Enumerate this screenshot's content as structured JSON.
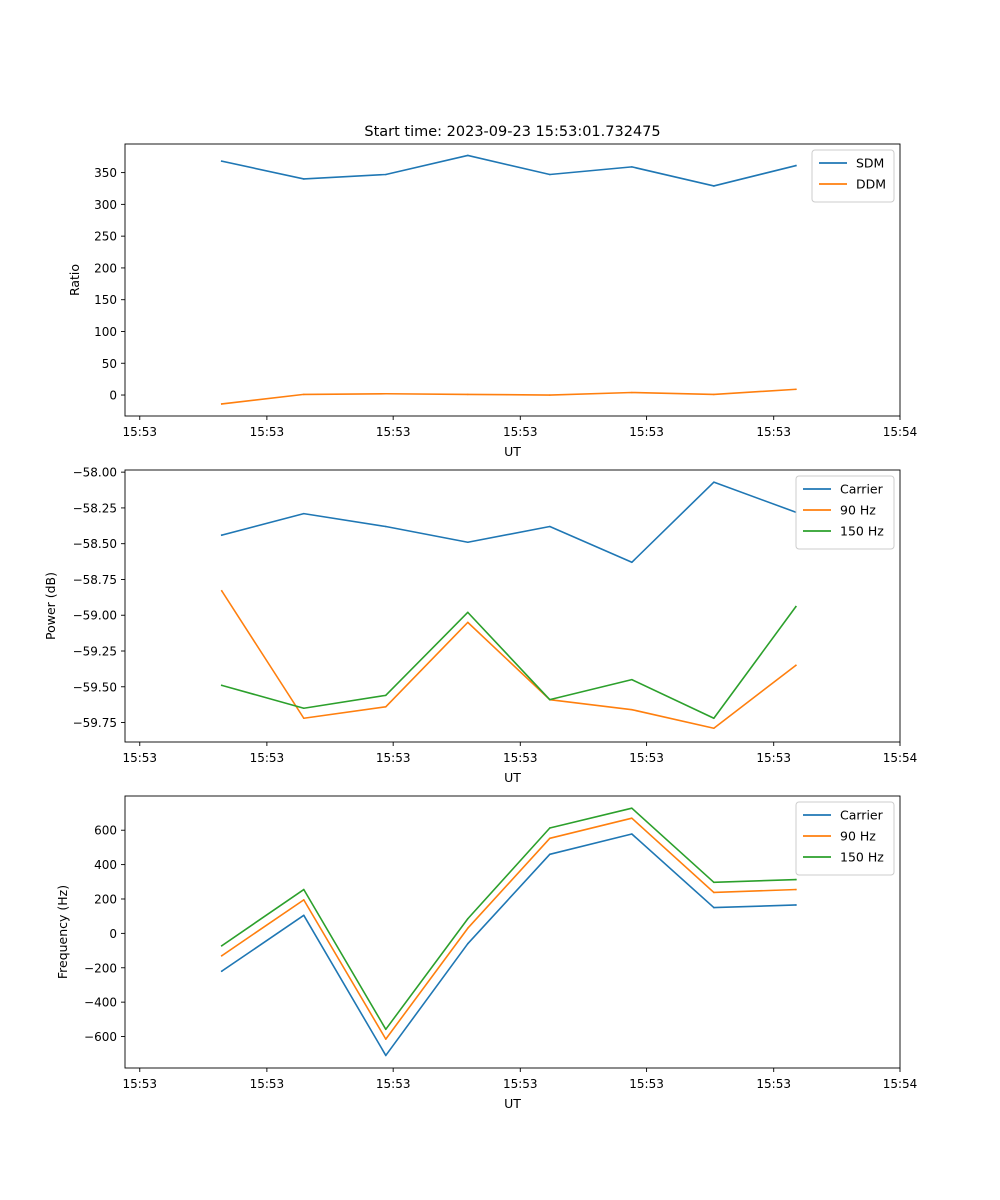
{
  "figure_title": "Start time: 2023-09-23 15:53:01.732475",
  "colors": {
    "blue": "#1f77b4",
    "orange": "#ff7f0e",
    "green": "#2ca02c",
    "axis": "#000000"
  },
  "chart_data": [
    {
      "type": "line",
      "title": "Start time: 2023-09-23 15:53:01.732475",
      "xlabel": "UT",
      "ylabel": "Ratio",
      "x": [
        1,
        2,
        3,
        4,
        5,
        6,
        7,
        8
      ],
      "xlim": [
        -0.18,
        9.27
      ],
      "xticks": [
        0,
        1.55,
        3.09,
        4.64,
        6.18,
        7.73,
        9.27
      ],
      "xtick_labels": [
        "15:53",
        "15:53",
        "15:53",
        "15:53",
        "15:53",
        "15:53",
        "15:54"
      ],
      "ylim": [
        -33,
        395
      ],
      "yticks": [
        0,
        50,
        100,
        150,
        200,
        250,
        300,
        350
      ],
      "ytick_labels": [
        "0",
        "50",
        "100",
        "150",
        "200",
        "250",
        "300",
        "350"
      ],
      "legend": "top-right",
      "series": [
        {
          "name": "SDM",
          "color": "#1f77b4",
          "values": [
            368,
            340,
            347,
            377,
            347,
            359,
            329,
            361
          ]
        },
        {
          "name": "DDM",
          "color": "#ff7f0e",
          "values": [
            -14,
            1,
            2,
            1,
            0,
            4,
            1,
            9
          ]
        }
      ]
    },
    {
      "type": "line",
      "title": "",
      "xlabel": "UT",
      "ylabel": "Power (dB)",
      "x": [
        1,
        2,
        3,
        4,
        5,
        6,
        7,
        8
      ],
      "xlim": [
        -0.18,
        9.27
      ],
      "xticks": [
        0,
        1.55,
        3.09,
        4.64,
        6.18,
        7.73,
        9.27
      ],
      "xtick_labels": [
        "15:53",
        "15:53",
        "15:53",
        "15:53",
        "15:53",
        "15:53",
        "15:54"
      ],
      "ylim": [
        -59.886,
        -57.985
      ],
      "yticks": [
        -59.75,
        -59.5,
        -59.25,
        -59.0,
        -58.75,
        -58.5,
        -58.25,
        -58.0
      ],
      "ytick_labels": [
        "−59.75",
        "−59.50",
        "−59.25",
        "−59.00",
        "−58.75",
        "−58.50",
        "−58.25",
        "−58.00"
      ],
      "legend": "top-right",
      "series": [
        {
          "name": "Carrier",
          "color": "#1f77b4",
          "values": [
            -58.44,
            -58.29,
            -58.38,
            -58.49,
            -58.38,
            -58.63,
            -58.07,
            -58.28
          ]
        },
        {
          "name": "90 Hz",
          "color": "#ff7f0e",
          "values": [
            -58.83,
            -59.72,
            -59.64,
            -59.05,
            -59.59,
            -59.66,
            -59.79,
            -59.35
          ]
        },
        {
          "name": "150 Hz",
          "color": "#2ca02c",
          "values": [
            -59.49,
            -59.65,
            -59.56,
            -58.98,
            -59.59,
            -59.45,
            -59.72,
            -58.94
          ]
        }
      ]
    },
    {
      "type": "line",
      "title": "",
      "xlabel": "UT",
      "ylabel": "Frequency (Hz)",
      "x": [
        1,
        2,
        3,
        4,
        5,
        6,
        7,
        8
      ],
      "xlim": [
        -0.18,
        9.27
      ],
      "xticks": [
        0,
        1.55,
        3.09,
        4.64,
        6.18,
        7.73,
        9.27
      ],
      "xtick_labels": [
        "15:53",
        "15:53",
        "15:53",
        "15:53",
        "15:53",
        "15:53",
        "15:54"
      ],
      "ylim": [
        -783,
        799
      ],
      "yticks": [
        -600,
        -400,
        -200,
        0,
        200,
        400,
        600
      ],
      "ytick_labels": [
        "−600",
        "−400",
        "−200",
        "0",
        "200",
        "400",
        "600"
      ],
      "legend": "top-right",
      "series": [
        {
          "name": "Carrier",
          "color": "#1f77b4",
          "values": [
            -220,
            105,
            -710,
            -60,
            460,
            578,
            150,
            165
          ]
        },
        {
          "name": "90 Hz",
          "color": "#ff7f0e",
          "values": [
            -130,
            195,
            -615,
            30,
            553,
            670,
            238,
            255
          ]
        },
        {
          "name": "150 Hz",
          "color": "#2ca02c",
          "values": [
            -72,
            255,
            -558,
            85,
            613,
            728,
            297,
            313
          ]
        }
      ]
    }
  ]
}
